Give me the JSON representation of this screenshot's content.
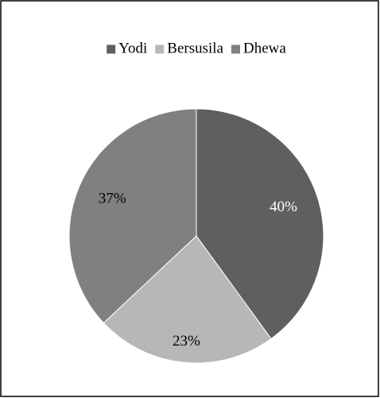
{
  "chart_data": {
    "type": "pie",
    "categories": [
      "Yodi",
      "Bersusila",
      "Dhewa"
    ],
    "values": [
      40,
      23,
      37
    ],
    "value_labels": [
      "40%",
      "23%",
      "37%"
    ],
    "colors": [
      "#5f5f5f",
      "#b7b7b7",
      "#808080"
    ],
    "legend": "top"
  }
}
